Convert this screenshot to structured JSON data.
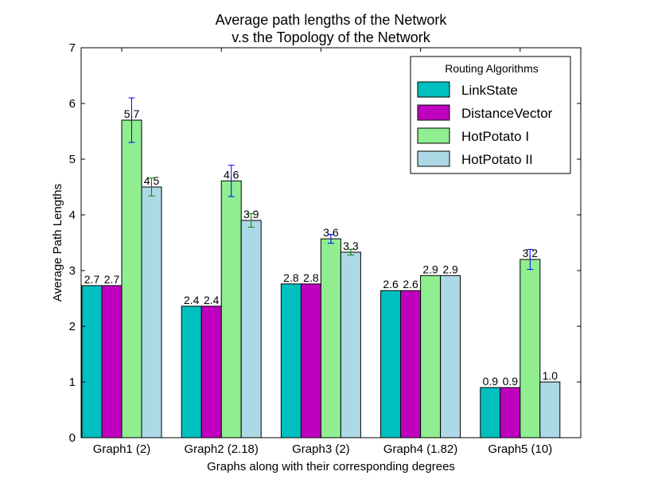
{
  "chart_data": {
    "type": "bar",
    "title": "Average path lengths of the Network",
    "subtitle": "v.s the Topology of the Network",
    "xlabel": "Graphs along with their corresponding degrees",
    "ylabel": "Average Path Lengths",
    "ylim": [
      0,
      7
    ],
    "yticks": [
      "0",
      "1",
      "2",
      "3",
      "4",
      "5",
      "6",
      "7"
    ],
    "categories": [
      "Graph1 (2)",
      "Graph2 (2.18)",
      "Graph3 (2)",
      "Graph4 (1.82)",
      "Graph5 (10)"
    ],
    "legend": {
      "title": "Routing Algorithms",
      "position": "top-right"
    },
    "grid": false,
    "series": [
      {
        "name": "LinkState",
        "color": "#00bfbf",
        "values": [
          2.73,
          2.36,
          2.76,
          2.64,
          0.9
        ],
        "labels": [
          "2.7",
          "2.4",
          "2.8",
          "2.6",
          "0.9"
        ],
        "errors": [
          null,
          null,
          null,
          null,
          null
        ],
        "error_color": "#0000ff"
      },
      {
        "name": "DistanceVector",
        "color": "#bf00bf",
        "values": [
          2.73,
          2.36,
          2.76,
          2.64,
          0.9
        ],
        "labels": [
          "2.7",
          "2.4",
          "2.8",
          "2.6",
          "0.9"
        ],
        "errors": [
          null,
          null,
          null,
          null,
          null
        ],
        "error_color": "#0000ff"
      },
      {
        "name": "HotPotato I",
        "color": "#90ee90",
        "values": [
          5.7,
          4.61,
          3.57,
          2.91,
          3.2
        ],
        "labels": [
          "5.7",
          "4.6",
          "3.6",
          "2.9",
          "3.2"
        ],
        "errors": [
          0.4,
          0.28,
          0.08,
          null,
          0.18
        ],
        "error_color": "#0000ff"
      },
      {
        "name": "HotPotato II",
        "color": "#add8e6",
        "values": [
          4.5,
          3.9,
          3.33,
          2.91,
          1.0
        ],
        "labels": [
          "4.5",
          "3.9",
          "3.3",
          "2.9",
          "1.0"
        ],
        "errors": [
          0.16,
          0.12,
          0.05,
          null,
          null
        ],
        "error_color": "#008000"
      }
    ]
  }
}
